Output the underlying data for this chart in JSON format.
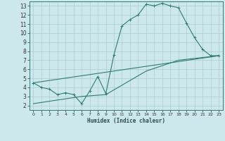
{
  "xlabel": "Humidex (Indice chaleur)",
  "bg_color": "#cce8ec",
  "grid_color": "#aacccc",
  "line_color": "#2d7d74",
  "xlim": [
    -0.5,
    23.5
  ],
  "ylim": [
    1.5,
    13.5
  ],
  "xticks": [
    0,
    1,
    2,
    3,
    4,
    5,
    6,
    7,
    8,
    9,
    10,
    11,
    12,
    13,
    14,
    15,
    16,
    17,
    18,
    19,
    20,
    21,
    22,
    23
  ],
  "yticks": [
    2,
    3,
    4,
    5,
    6,
    7,
    8,
    9,
    10,
    11,
    12,
    13
  ],
  "line1_x": [
    0,
    1,
    2,
    3,
    4,
    5,
    6,
    7,
    8,
    9,
    10,
    11,
    12,
    13,
    14,
    15,
    16,
    17,
    18,
    19,
    20,
    21,
    22,
    23
  ],
  "line1_y": [
    4.5,
    4.0,
    3.8,
    3.2,
    3.4,
    3.2,
    2.2,
    3.6,
    5.2,
    3.3,
    7.6,
    10.8,
    11.5,
    12.0,
    13.2,
    13.0,
    13.3,
    13.0,
    12.8,
    11.1,
    9.5,
    8.2,
    7.5,
    7.5
  ],
  "line2_x": [
    0,
    23
  ],
  "line2_y": [
    4.5,
    7.5
  ],
  "line3_x": [
    0,
    6,
    9,
    14,
    18,
    23
  ],
  "line3_y": [
    2.2,
    3.0,
    3.2,
    5.8,
    7.0,
    7.5
  ]
}
